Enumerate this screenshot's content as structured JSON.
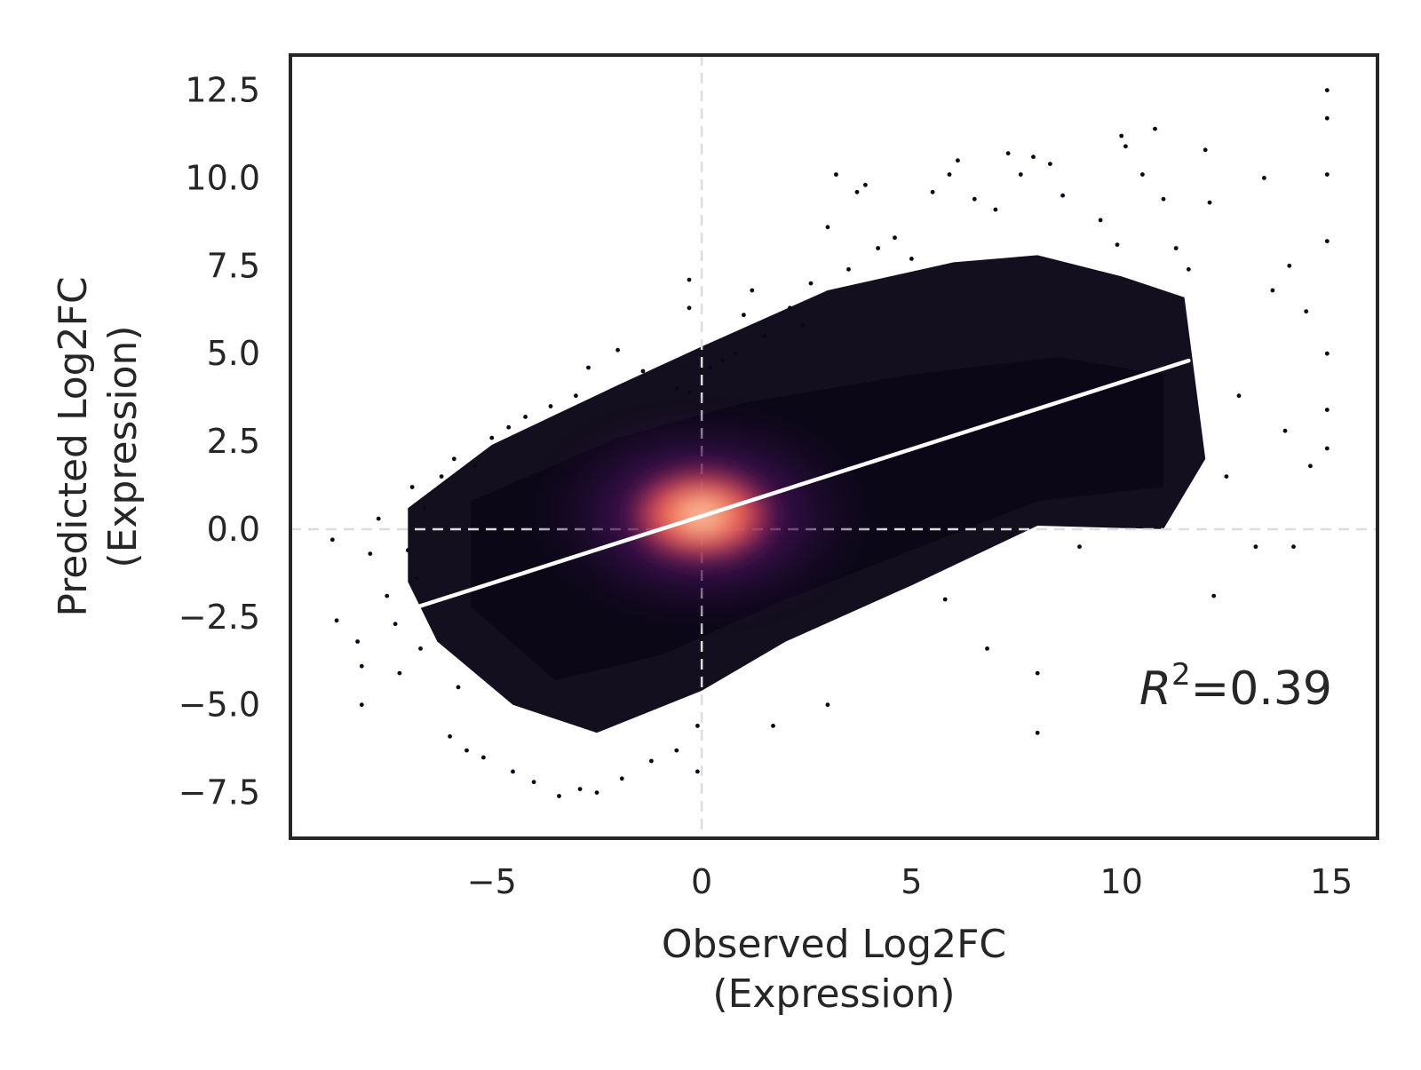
{
  "chart_data": {
    "type": "scatter",
    "title": "",
    "xlabel_lines": [
      "Observed Log2FC",
      "(Expression)"
    ],
    "ylabel_lines": [
      "Predicted Log2FC",
      "(Expression)"
    ],
    "xlim": [
      -9.8,
      16.1
    ],
    "ylim": [
      -8.8,
      13.5
    ],
    "xticks": [
      -5,
      0,
      5,
      10,
      15
    ],
    "xtick_labels": [
      "−5",
      "0",
      "5",
      "10",
      "15"
    ],
    "yticks": [
      -7.5,
      -5.0,
      -2.5,
      0.0,
      2.5,
      5.0,
      7.5,
      10.0,
      12.5
    ],
    "ytick_labels": [
      "−7.5",
      "−5.0",
      "−2.5",
      "0.0",
      "2.5",
      "5.0",
      "7.5",
      "10.0",
      "12.5"
    ],
    "grid": false,
    "reference_lines": {
      "x": 0,
      "y": 0,
      "style": "dashed",
      "color": "#dddddd"
    },
    "regression_line": {
      "x": [
        -7.0,
        11.6
      ],
      "y": [
        -2.3,
        4.8
      ],
      "color": "#ffffff"
    },
    "annotation": {
      "symbol": "R",
      "superscript": "2",
      "text": "=0.39"
    },
    "density_colormap": [
      "#0b0717",
      "#3a0f4e",
      "#7c1d6f",
      "#c73a5b",
      "#f0584a",
      "#f9a277",
      "#fbe7d4"
    ],
    "point_color": "#0b0717",
    "points": [
      [
        -8.8,
        -0.3
      ],
      [
        -8.7,
        -2.6
      ],
      [
        -8.2,
        -3.2
      ],
      [
        -8.1,
        -3.9
      ],
      [
        -8.1,
        -5.0
      ],
      [
        -7.9,
        -0.7
      ],
      [
        -7.7,
        0.3
      ],
      [
        -7.5,
        -1.9
      ],
      [
        -7.3,
        -2.7
      ],
      [
        -7.2,
        -4.1
      ],
      [
        -7.0,
        -0.6
      ],
      [
        -6.9,
        1.2
      ],
      [
        -6.8,
        -1.4
      ],
      [
        -6.7,
        -3.4
      ],
      [
        -6.6,
        0.6
      ],
      [
        -6.2,
        1.5
      ],
      [
        -6.0,
        -5.9
      ],
      [
        -5.9,
        2.0
      ],
      [
        -5.8,
        -4.5
      ],
      [
        -5.6,
        -6.3
      ],
      [
        -5.4,
        1.8
      ],
      [
        -5.2,
        -6.5
      ],
      [
        -5.0,
        2.6
      ],
      [
        -4.6,
        2.9
      ],
      [
        -4.5,
        -6.9
      ],
      [
        -4.2,
        3.2
      ],
      [
        -4.0,
        -7.2
      ],
      [
        -3.6,
        3.5
      ],
      [
        -3.4,
        -7.6
      ],
      [
        -3.0,
        3.8
      ],
      [
        -2.9,
        -7.4
      ],
      [
        -2.7,
        4.6
      ],
      [
        -2.5,
        -7.5
      ],
      [
        -2.0,
        5.1
      ],
      [
        -1.9,
        -7.1
      ],
      [
        -1.4,
        4.5
      ],
      [
        -1.2,
        -6.6
      ],
      [
        -0.6,
        4.0
      ],
      [
        -0.6,
        -6.3
      ],
      [
        -0.3,
        3.9
      ],
      [
        -0.3,
        6.3
      ],
      [
        -0.3,
        7.1
      ],
      [
        -0.1,
        -6.9
      ],
      [
        -0.1,
        -5.6
      ],
      [
        0.2,
        4.6
      ],
      [
        0.5,
        4.8
      ],
      [
        0.8,
        5.0
      ],
      [
        1.0,
        6.1
      ],
      [
        1.2,
        6.8
      ],
      [
        1.5,
        5.5
      ],
      [
        1.7,
        -5.6
      ],
      [
        2.1,
        6.3
      ],
      [
        2.4,
        5.8
      ],
      [
        2.6,
        7.0
      ],
      [
        3.0,
        -5.0
      ],
      [
        3.0,
        8.6
      ],
      [
        3.2,
        10.1
      ],
      [
        3.5,
        7.4
      ],
      [
        3.7,
        9.6
      ],
      [
        3.9,
        9.8
      ],
      [
        4.2,
        8.0
      ],
      [
        4.6,
        8.3
      ],
      [
        5.0,
        7.7
      ],
      [
        5.5,
        9.6
      ],
      [
        5.8,
        -2.0
      ],
      [
        5.9,
        10.1
      ],
      [
        6.1,
        10.5
      ],
      [
        6.5,
        9.4
      ],
      [
        6.8,
        -3.4
      ],
      [
        7.0,
        9.1
      ],
      [
        7.3,
        10.7
      ],
      [
        7.6,
        10.1
      ],
      [
        7.9,
        10.6
      ],
      [
        8.0,
        -4.1
      ],
      [
        8.0,
        -5.8
      ],
      [
        8.3,
        10.4
      ],
      [
        8.6,
        9.5
      ],
      [
        9.0,
        -0.5
      ],
      [
        9.5,
        8.8
      ],
      [
        9.9,
        8.1
      ],
      [
        10.0,
        11.2
      ],
      [
        10.1,
        10.9
      ],
      [
        10.5,
        10.1
      ],
      [
        10.8,
        11.4
      ],
      [
        11.0,
        9.4
      ],
      [
        11.3,
        8.0
      ],
      [
        11.6,
        7.4
      ],
      [
        12.0,
        10.8
      ],
      [
        12.1,
        9.3
      ],
      [
        12.2,
        -1.9
      ],
      [
        12.5,
        1.5
      ],
      [
        12.8,
        3.8
      ],
      [
        13.2,
        -0.5
      ],
      [
        13.4,
        10.0
      ],
      [
        13.6,
        6.8
      ],
      [
        13.9,
        2.8
      ],
      [
        14.0,
        7.5
      ],
      [
        14.1,
        -0.5
      ],
      [
        14.4,
        6.2
      ],
      [
        14.5,
        1.8
      ],
      [
        14.9,
        12.5
      ],
      [
        14.9,
        11.7
      ],
      [
        14.9,
        10.1
      ],
      [
        14.9,
        8.2
      ],
      [
        14.9,
        5.0
      ],
      [
        14.9,
        3.4
      ],
      [
        14.9,
        2.3
      ]
    ]
  }
}
